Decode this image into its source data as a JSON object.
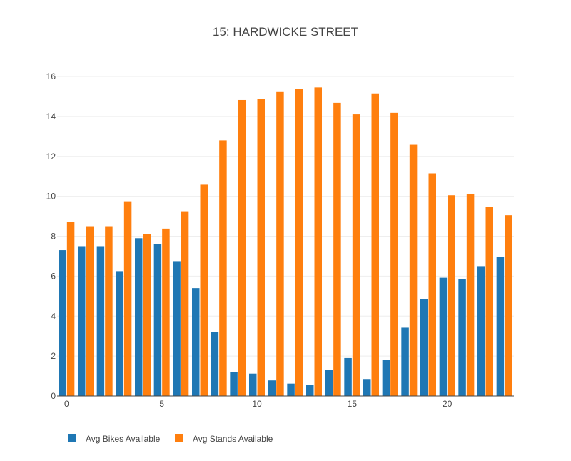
{
  "chart_data": {
    "type": "bar",
    "title": "15: HARDWICKE STREET",
    "xlabel": "",
    "ylabel": "",
    "x": [
      0,
      1,
      2,
      3,
      4,
      5,
      6,
      7,
      8,
      9,
      10,
      11,
      12,
      13,
      14,
      15,
      16,
      17,
      18,
      19,
      20,
      21,
      22,
      23
    ],
    "xticks": [
      0,
      5,
      10,
      15,
      20
    ],
    "ylim": [
      0,
      16
    ],
    "yticks": [
      0,
      2,
      4,
      6,
      8,
      10,
      12,
      14,
      16
    ],
    "grid": true,
    "legend_position": "bottom-left",
    "series": [
      {
        "name": "Avg Bikes Available",
        "color": "#1f77b4",
        "values": [
          7.3,
          7.5,
          7.5,
          6.25,
          7.9,
          7.6,
          6.75,
          5.4,
          3.2,
          1.2,
          1.12,
          0.78,
          0.62,
          0.56,
          1.32,
          1.9,
          0.85,
          1.82,
          3.42,
          4.85,
          5.92,
          5.85,
          6.5,
          6.95
        ]
      },
      {
        "name": "Avg Stands Available",
        "color": "#ff7f0e",
        "values": [
          8.7,
          8.5,
          8.5,
          9.75,
          8.1,
          8.38,
          9.25,
          10.58,
          12.8,
          14.82,
          14.88,
          15.22,
          15.38,
          15.45,
          14.68,
          14.1,
          15.15,
          14.18,
          12.58,
          11.15,
          10.05,
          10.13,
          9.48,
          9.05
        ]
      }
    ]
  }
}
